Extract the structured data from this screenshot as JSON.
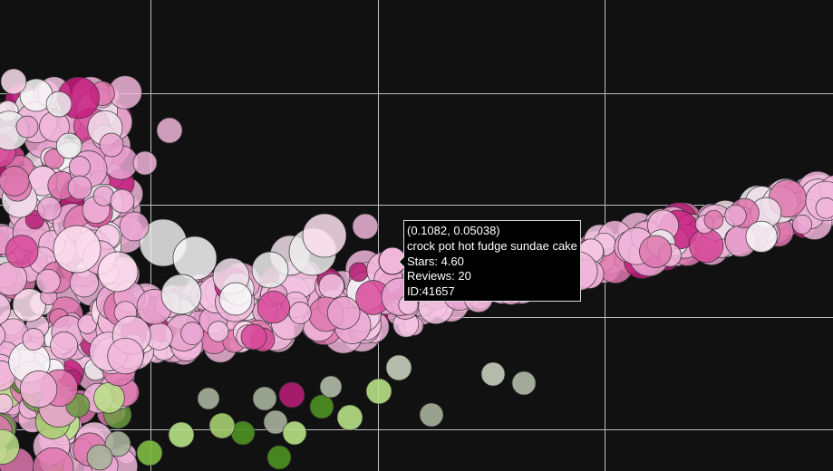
{
  "chart_data": {
    "type": "scatter",
    "title": "",
    "xlabel": "",
    "ylabel": "",
    "grid": true,
    "background": "#111111",
    "grid_color": "#c0c0c0",
    "color_scale": [
      "#c51b7d",
      "#f1b6da",
      "#f7f7f7",
      "#b8e186",
      "#4d9221"
    ],
    "points": [
      {
        "x": 0.1082,
        "y": 0.05038,
        "stars": 4.6,
        "reviews": 20,
        "label": "crock pot hot fudge sundae cake",
        "id": 41657
      }
    ]
  },
  "tooltip": {
    "coords": "(0.1082, 0.05038)",
    "name": "crock pot hot fudge sundae cake",
    "stars": "Stars: 4.60",
    "reviews": "Reviews: 20",
    "id": "ID:41657"
  }
}
